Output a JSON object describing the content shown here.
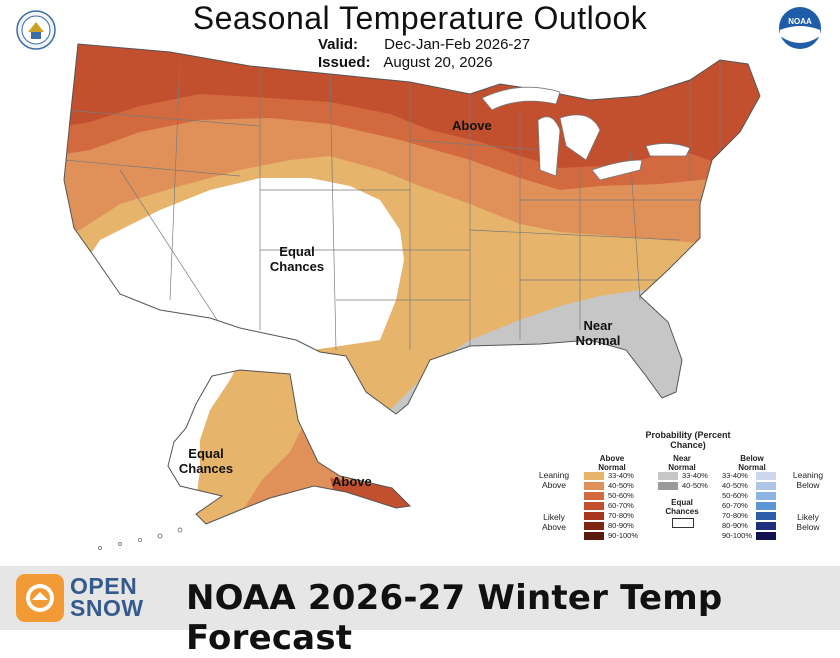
{
  "header": {
    "title": "Seasonal Temperature Outlook",
    "valid_label": "Valid:",
    "valid_value": "Dec-Jan-Feb 2026-27",
    "issued_label": "Issued:",
    "issued_value": "August 20, 2026"
  },
  "logos": {
    "left": "doc-seal-icon",
    "right": "noaa-logo-icon",
    "noaa_text": "NOAA"
  },
  "map_labels": {
    "above_north": "Above",
    "equal_chances_west": "Equal Chances",
    "near_normal": "Near Normal",
    "equal_chances_alaska": "Equal Chances",
    "above_alaska": "Above"
  },
  "legend": {
    "title": "Probability (Percent Chance)",
    "above_header": "Above Normal",
    "near_header": "Near Normal",
    "below_header": "Below Normal",
    "leaning_above": "Leaning Above",
    "likely_above": "Likely Above",
    "leaning_below": "Leaning Below",
    "likely_below": "Likely Below",
    "equal_chances": "Equal Chances",
    "above_ranges": [
      "33-40%",
      "40-50%",
      "50-60%",
      "60-70%",
      "70-80%",
      "80-90%",
      "90-100%"
    ],
    "near_ranges": [
      "33-40%",
      "40-50%"
    ],
    "below_ranges": [
      "33-40%",
      "40-50%",
      "50-60%",
      "60-70%",
      "70-80%",
      "80-90%",
      "90-100%"
    ]
  },
  "colors": {
    "above": [
      "#e6b46b",
      "#e0915a",
      "#d36a3f",
      "#c2502e",
      "#a6361e",
      "#7f2613",
      "#5a1a0c"
    ],
    "near": [
      "#c6c6c6",
      "#9a9a9a"
    ],
    "below": [
      "#c9d6ec",
      "#adc6e6",
      "#8db5e2",
      "#5c95d3",
      "#2f5ea8",
      "#1f2f7c",
      "#15134f"
    ],
    "equal": "#ffffff"
  },
  "footer": {
    "brand_line1": "OPEN",
    "brand_line2": "SNOW",
    "headline": "NOAA 2026-27 Winter Temp Forecast"
  }
}
